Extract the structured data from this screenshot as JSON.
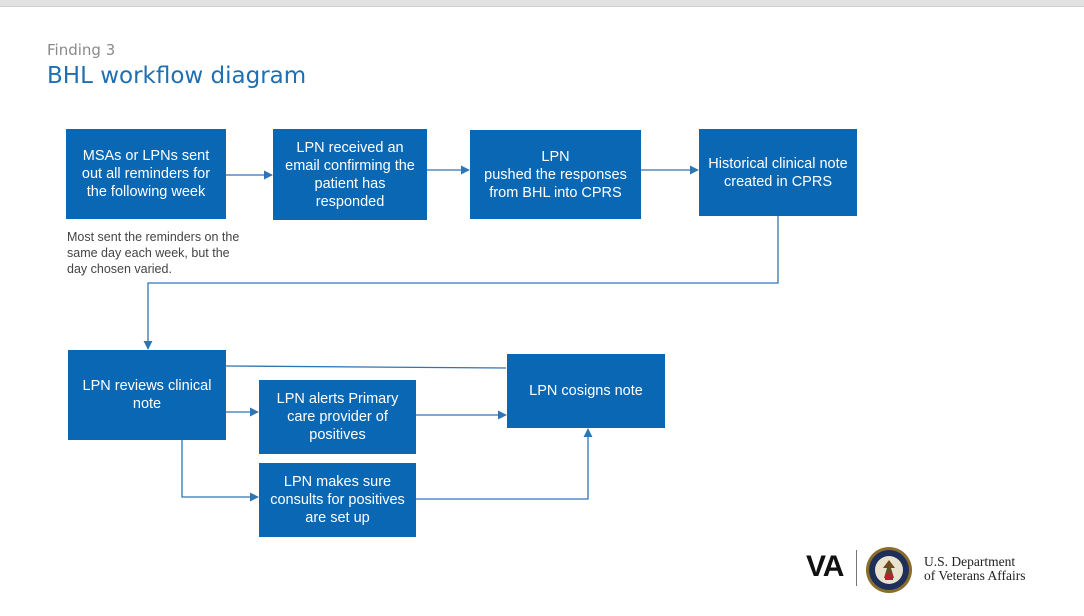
{
  "header": {
    "kicker": "Finding 3",
    "title": "BHL workflow diagram"
  },
  "boxes": {
    "b1": "MSAs or LPNs sent out all reminders for the following week",
    "b2": "LPN received an email confirming the patient has responded",
    "b3": "LPN\npushed the responses from BHL into CPRS",
    "b4": "Historical clinical note created in CPRS",
    "b5": "LPN reviews clinical note",
    "b6": "LPN alerts Primary care provider of positives",
    "b7": "LPN makes sure consults for positives are set up",
    "b8": "LPN cosigns note"
  },
  "note": "Most sent the reminders on the same day each week, but the day chosen varied.",
  "logo": {
    "va_text": "VA",
    "dept_text": "U.S. Department\nof Veterans Affairs",
    "seal_icon": "va-seal-icon"
  },
  "colors": {
    "box": "#0a67b4",
    "line": "#2e75b6",
    "title": "#1f6fb2"
  }
}
